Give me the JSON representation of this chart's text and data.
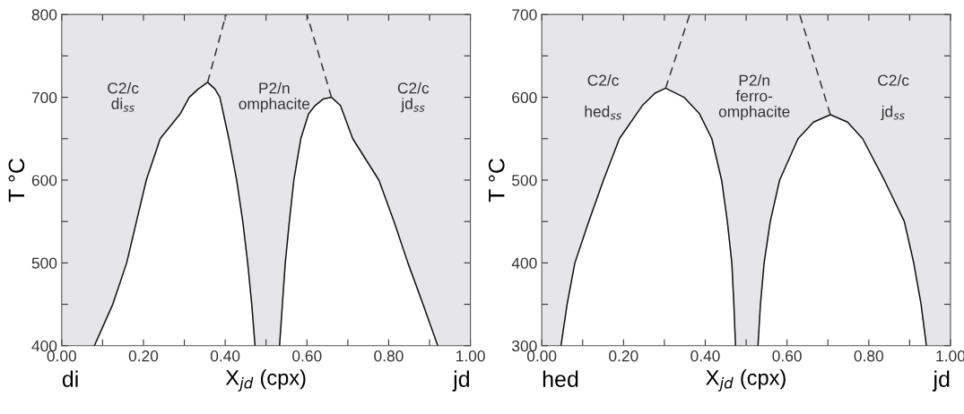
{
  "chart_data": [
    {
      "type": "line",
      "xlabel": "X$_{jd}$ (cpx)",
      "ylabel": "T °C",
      "xlim": [
        0,
        1
      ],
      "ylim": [
        400,
        800
      ],
      "xticks": [
        {
          "value": 0,
          "label": "0.00"
        },
        {
          "value": 0.1,
          "label": null
        },
        {
          "value": 0.2,
          "label": "0.20"
        },
        {
          "value": 0.3,
          "label": null
        },
        {
          "value": 0.4,
          "label": "0.40"
        },
        {
          "value": 0.5,
          "label": null
        },
        {
          "value": 0.6,
          "label": "0.60"
        },
        {
          "value": 0.7,
          "label": null
        },
        {
          "value": 0.8,
          "label": "0.80"
        },
        {
          "value": 0.9,
          "label": null
        },
        {
          "value": 1,
          "label": "1.00"
        }
      ],
      "yticks": [
        400,
        {
          "value": 450,
          "label": null
        },
        500,
        {
          "value": 550,
          "label": null
        },
        600,
        {
          "value": 650,
          "label": null
        },
        700,
        {
          "value": 750,
          "label": null
        },
        800
      ],
      "bands": [
        {
          "axis": "x",
          "from": 0,
          "to": 1,
          "color": "#e6e6e8"
        }
      ],
      "series": [
        {
          "type": "area",
          "color": "#ffffff",
          "x": [
            0.08,
            0.125,
            0.159,
            0.183,
            0.207,
            0.241,
            0.29,
            0.312,
            0.334,
            0.357,
            0.375,
            0.387,
            0.409,
            0.428,
            0.443,
            0.455,
            0.465,
            0.473
          ],
          "values": [
            400,
            450,
            500,
            550,
            600,
            650,
            680,
            700,
            710,
            718,
            710,
            700,
            650,
            600,
            550,
            500,
            450,
            400
          ]
        },
        {
          "type": "area",
          "color": "#ffffff",
          "x": [
            0.533,
            0.54,
            0.547,
            0.557,
            0.568,
            0.585,
            0.604,
            0.62,
            0.64,
            0.66,
            0.682,
            0.712,
            0.776,
            0.813,
            0.847,
            0.884,
            0.92
          ],
          "values": [
            400,
            450,
            500,
            550,
            600,
            650,
            680,
            690,
            698,
            700,
            690,
            650,
            600,
            550,
            500,
            450,
            400
          ]
        },
        {
          "color": "#333333",
          "line_style": "dashed",
          "x": [
            0.357,
            0.402
          ],
          "values": [
            718,
            800
          ]
        },
        {
          "color": "#333333",
          "line_style": "dashed",
          "x": [
            0.66,
            0.6
          ],
          "values": [
            700,
            800
          ]
        }
      ],
      "annotations": [
        "C2/c\ndi$_{ss}$",
        "P2/n\nomphacite",
        "C2/c\njd$_{ss}$",
        "di",
        "jd"
      ]
    },
    {
      "type": "line",
      "xlabel": "X$_{jd}$ (cpx)",
      "ylabel": "T °C",
      "xlim": [
        0,
        1
      ],
      "ylim": [
        300,
        700
      ],
      "xticks": [
        {
          "value": 0,
          "label": "0.00"
        },
        {
          "value": 0.1,
          "label": null
        },
        {
          "value": 0.2,
          "label": "0.20"
        },
        {
          "value": 0.3,
          "label": null
        },
        {
          "value": 0.4,
          "label": "0.40"
        },
        {
          "value": 0.5,
          "label": null
        },
        {
          "value": 0.6,
          "label": "0.60"
        },
        {
          "value": 0.7,
          "label": null
        },
        {
          "value": 0.8,
          "label": "0.80"
        },
        {
          "value": 0.9,
          "label": null
        },
        {
          "value": 1,
          "label": "1.00"
        }
      ],
      "yticks": [
        300,
        {
          "value": 350,
          "label": null
        },
        400,
        {
          "value": 450,
          "label": null
        },
        500,
        {
          "value": 550,
          "label": null
        },
        600,
        {
          "value": 650,
          "label": null
        },
        700
      ],
      "bands": [
        {
          "axis": "x",
          "from": 0,
          "to": 1,
          "color": "#e6e6e8"
        }
      ],
      "series": [
        {
          "type": "area",
          "color": "#ffffff",
          "x": [
            0.047,
            0.062,
            0.081,
            0.115,
            0.151,
            0.19,
            0.246,
            0.277,
            0.303,
            0.348,
            0.386,
            0.416,
            0.44,
            0.454,
            0.465,
            0.47,
            0.474
          ],
          "values": [
            300,
            350,
            400,
            450,
            500,
            550,
            590,
            605,
            611,
            600,
            580,
            550,
            500,
            450,
            400,
            350,
            300
          ]
        },
        {
          "type": "area",
          "color": "#ffffff",
          "x": [
            0.529,
            0.535,
            0.544,
            0.559,
            0.582,
            0.627,
            0.665,
            0.706,
            0.748,
            0.785,
            0.838,
            0.887,
            0.91,
            0.928,
            0.941
          ],
          "values": [
            300,
            350,
            400,
            450,
            500,
            550,
            570,
            579,
            570,
            550,
            500,
            450,
            400,
            350,
            300
          ]
        },
        {
          "color": "#333333",
          "line_style": "dashed",
          "x": [
            0.303,
            0.362
          ],
          "values": [
            611,
            700
          ]
        },
        {
          "color": "#333333",
          "line_style": "dashed",
          "x": [
            0.706,
            0.631
          ],
          "values": [
            579,
            700
          ]
        }
      ],
      "annotations": [
        "C2/c\n\nhed$_{ss}$",
        "P2/n\nferro-\nomphacite",
        "C2/c\n\njd$_{ss}$",
        "hed",
        "jd"
      ]
    }
  ]
}
